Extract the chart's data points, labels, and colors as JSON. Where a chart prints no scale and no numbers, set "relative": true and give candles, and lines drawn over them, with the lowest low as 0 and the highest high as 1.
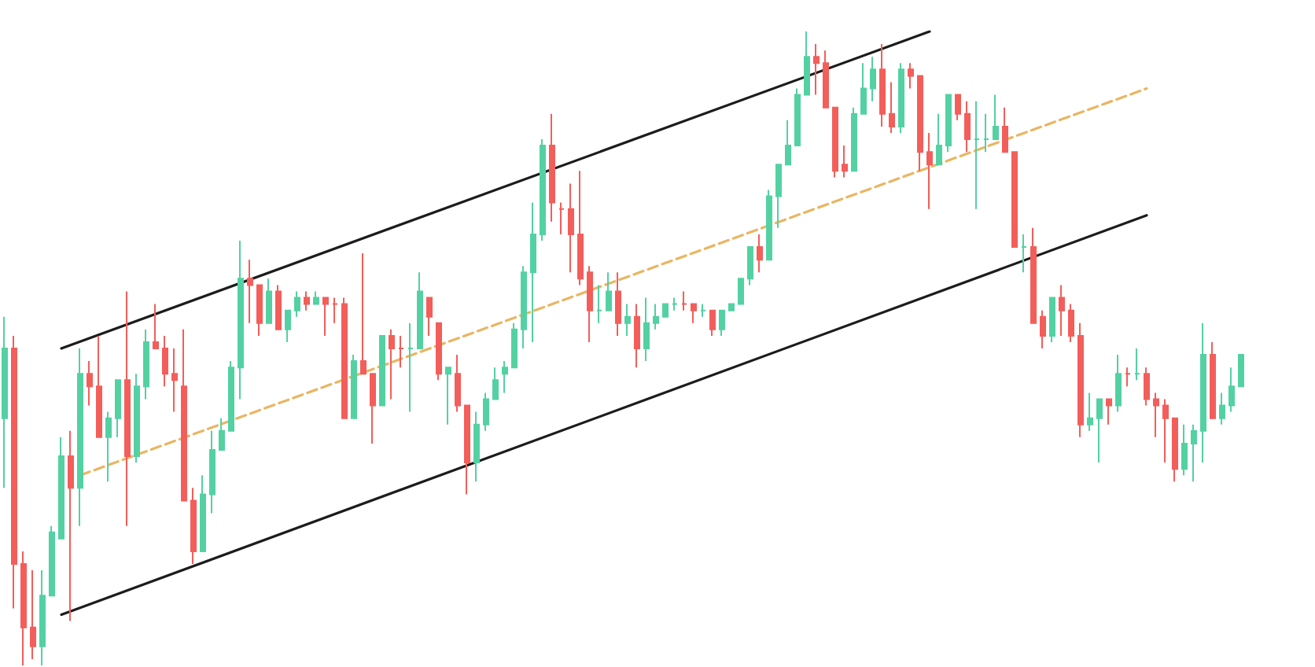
{
  "chart_data": {
    "type": "candlestick",
    "relative": true,
    "tick_labels": false,
    "grid": false,
    "colors": [
      "#53d1a3",
      "#f35e5a",
      "#f35e5a",
      "#f35e5a",
      "#53d1a3",
      "#53d1a3",
      "#53d1a3",
      "#f35e5a",
      "#53d1a3",
      "#f35e5a",
      "#f35e5a",
      "#53d1a3",
      "#53d1a3",
      "#f35e5a",
      "#53d1a3",
      "#53d1a3",
      "#f35e5a",
      "#f35e5a",
      "#f35e5a",
      "#f35e5a",
      "#f35e5a",
      "#53d1a3",
      "#53d1a3",
      "#53d1a3",
      "#53d1a3",
      "#53d1a3",
      "#f35e5a",
      "#f35e5a",
      "#53d1a3",
      "#f35e5a",
      "#53d1a3",
      "#53d1a3",
      "#f35e5a",
      "#53d1a3",
      "#f35e5a",
      "#f35e5a",
      "#f35e5a",
      "#53d1a3",
      "#f35e5a",
      "#f35e5a",
      "#53d1a3",
      "#f35e5a",
      "#f35e5a",
      "#53d1a3",
      "#53d1a3",
      "#f35e5a",
      "#f35e5a",
      "#53d1a3",
      "#f35e5a",
      "#f35e5a",
      "#53d1a3",
      "#53d1a3",
      "#53d1a3",
      "#53d1a3",
      "#53d1a3",
      "#53d1a3",
      "#53d1a3",
      "#53d1a3",
      "#f35e5a",
      "#f35e5a",
      "#f35e5a",
      "#f35e5a",
      "#f35e5a",
      "#53d1a3",
      "#53d1a3",
      "#f35e5a",
      "#53d1a3",
      "#f35e5a",
      "#53d1a3",
      "#53d1a3",
      "#53d1a3",
      "#53d1a3",
      "#f35e5a",
      "#f35e5a",
      "#53d1a3",
      "#f35e5a",
      "#53d1a3",
      "#53d1a3",
      "#53d1a3",
      "#53d1a3",
      "#f35e5a",
      "#53d1a3",
      "#53d1a3",
      "#53d1a3",
      "#53d1a3",
      "#53d1a3",
      "#f35e5a",
      "#f35e5a",
      "#f35e5a",
      "#f35e5a",
      "#53d1a3",
      "#53d1a3",
      "#53d1a3",
      "#f35e5a",
      "#f35e5a",
      "#53d1a3",
      "#f35e5a",
      "#f35e5a",
      "#f35e5a",
      "#53d1a3",
      "#53d1a3",
      "#f35e5a",
      "#f35e5a",
      "#53d1a3",
      "#53d1a3",
      "#53d1a3",
      "#f35e5a",
      "#f35e5a",
      "#53d1a3",
      "#f35e5a",
      "#f35e5a",
      "#53d1a3",
      "#f35e5a",
      "#f35e5a",
      "#f35e5a",
      "#53d1a3",
      "#53d1a3",
      "#f35e5a",
      "#53d1a3",
      "#f35e5a",
      "#53d1a3",
      "#f35e5a",
      "#f35e5a",
      "#f35e5a",
      "#f35e5a",
      "#53d1a3",
      "#53d1a3",
      "#53d1a3",
      "#f35e5a",
      "#53d1a3",
      "#53d1a3",
      "#53d1a3"
    ],
    "categories": [
      null,
      null,
      null,
      null,
      null,
      null,
      null,
      null,
      null,
      null,
      null,
      null,
      null,
      null,
      null,
      null,
      null,
      null,
      null,
      null,
      null,
      null,
      null,
      null,
      null,
      null,
      null,
      null,
      null,
      null,
      null,
      null,
      null,
      null,
      null,
      null,
      null,
      null,
      null,
      null,
      null,
      null,
      null,
      null,
      null,
      null,
      null,
      null,
      null,
      null,
      null,
      null,
      null,
      null,
      null,
      null,
      null,
      null,
      null,
      null,
      null,
      null,
      null,
      null,
      null,
      null,
      null,
      null,
      null,
      null,
      null,
      null,
      null,
      null,
      null,
      null,
      null,
      null,
      null,
      null,
      null,
      null,
      null,
      null,
      null,
      null,
      null,
      null,
      null,
      null,
      null,
      null,
      null,
      null,
      null,
      null,
      null,
      null,
      null,
      null,
      null,
      null,
      null,
      null,
      null,
      null,
      null,
      null,
      null,
      null,
      null,
      null,
      null,
      null,
      null,
      null,
      null,
      null,
      null,
      null,
      null,
      null,
      null,
      null,
      null,
      null,
      null,
      null,
      null,
      null,
      null,
      null
    ],
    "ohlc": [
      [
        0.39,
        0.55,
        0.28,
        0.5
      ],
      [
        0.5,
        0.52,
        0.09,
        0.16
      ],
      [
        0.16,
        0.18,
        0,
        0.06
      ],
      [
        0.06,
        0.15,
        0.01,
        0.03
      ],
      [
        0.03,
        0.15,
        0,
        0.11
      ],
      [
        0.11,
        0.22,
        0.11,
        0.21
      ],
      [
        0.2,
        0.36,
        0.2,
        0.33
      ],
      [
        0.33,
        0.37,
        0.07,
        0.28
      ],
      [
        0.28,
        0.5,
        0.22,
        0.46
      ],
      [
        0.46,
        0.48,
        0.41,
        0.44
      ],
      [
        0.44,
        0.52,
        0.36,
        0.36
      ],
      [
        0.36,
        0.4,
        0.29,
        0.39
      ],
      [
        0.39,
        0.45,
        0.36,
        0.45
      ],
      [
        0.45,
        0.59,
        0.22,
        0.33
      ],
      [
        0.33,
        0.46,
        0.32,
        0.44
      ],
      [
        0.44,
        0.53,
        0.42,
        0.51
      ],
      [
        0.51,
        0.57,
        0.5,
        0.5
      ],
      [
        0.5,
        0.52,
        0.44,
        0.46
      ],
      [
        0.46,
        0.5,
        0.4,
        0.45
      ],
      [
        0.44,
        0.53,
        0.26,
        0.26
      ],
      [
        0.26,
        0.28,
        0.16,
        0.18
      ],
      [
        0.18,
        0.3,
        0.18,
        0.27
      ],
      [
        0.27,
        0.37,
        0.24,
        0.34
      ],
      [
        0.34,
        0.39,
        0.34,
        0.37
      ],
      [
        0.37,
        0.48,
        0.37,
        0.47
      ],
      [
        0.47,
        0.67,
        0.42,
        0.61
      ],
      [
        0.61,
        0.64,
        0.54,
        0.6
      ],
      [
        0.6,
        0.6,
        0.52,
        0.54
      ],
      [
        0.54,
        0.61,
        0.54,
        0.59
      ],
      [
        0.59,
        0.6,
        0.53,
        0.53
      ],
      [
        0.53,
        0.56,
        0.51,
        0.56
      ],
      [
        0.56,
        0.59,
        0.55,
        0.58
      ],
      [
        0.58,
        0.59,
        0.56,
        0.57
      ],
      [
        0.57,
        0.59,
        0.57,
        0.58
      ],
      [
        0.58,
        0.58,
        0.52,
        0.57
      ],
      [
        0.57,
        0.58,
        0.54,
        0.57
      ],
      [
        0.57,
        0.58,
        0.39,
        0.39
      ],
      [
        0.39,
        0.49,
        0.39,
        0.48
      ],
      [
        0.48,
        0.65,
        0.46,
        0.46
      ],
      [
        0.46,
        0.46,
        0.35,
        0.41
      ],
      [
        0.41,
        0.52,
        0.41,
        0.52
      ],
      [
        0.52,
        0.53,
        0.42,
        0.5
      ],
      [
        0.5,
        0.52,
        0.47,
        0.5
      ],
      [
        0.5,
        0.54,
        0.4,
        0.5
      ],
      [
        0.5,
        0.62,
        0.5,
        0.59
      ],
      [
        0.58,
        0.58,
        0.52,
        0.55
      ],
      [
        0.54,
        0.54,
        0.45,
        0.46
      ],
      [
        0.46,
        0.47,
        0.38,
        0.47
      ],
      [
        0.46,
        0.49,
        0.4,
        0.41
      ],
      [
        0.41,
        0.41,
        0.27,
        0.32
      ],
      [
        0.32,
        0.4,
        0.29,
        0.38
      ],
      [
        0.38,
        0.43,
        0.37,
        0.42
      ],
      [
        0.42,
        0.47,
        0.42,
        0.45
      ],
      [
        0.46,
        0.48,
        0.43,
        0.47
      ],
      [
        0.47,
        0.54,
        0.47,
        0.53
      ],
      [
        0.53,
        0.63,
        0.5,
        0.62
      ],
      [
        0.62,
        0.73,
        0.51,
        0.68
      ],
      [
        0.68,
        0.83,
        0.67,
        0.82
      ],
      [
        0.82,
        0.87,
        0.7,
        0.73
      ],
      [
        0.72,
        0.73,
        0.68,
        0.72
      ],
      [
        0.72,
        0.76,
        0.62,
        0.68
      ],
      [
        0.68,
        0.78,
        0.6,
        0.61
      ],
      [
        0.62,
        0.63,
        0.51,
        0.56
      ],
      [
        0.56,
        0.6,
        0.54,
        0.56
      ],
      [
        0.56,
        0.62,
        0.56,
        0.59
      ],
      [
        0.59,
        0.62,
        0.52,
        0.54
      ],
      [
        0.54,
        0.57,
        0.52,
        0.55
      ],
      [
        0.55,
        0.57,
        0.47,
        0.5
      ],
      [
        0.5,
        0.58,
        0.48,
        0.54
      ],
      [
        0.54,
        0.57,
        0.53,
        0.55
      ],
      [
        0.55,
        0.57,
        0.55,
        0.57
      ],
      [
        0.57,
        0.58,
        0.56,
        0.57
      ],
      [
        0.57,
        0.59,
        0.56,
        0.57
      ],
      [
        0.57,
        0.57,
        0.54,
        0.56
      ],
      [
        0.56,
        0.57,
        0.55,
        0.56
      ],
      [
        0.56,
        0.56,
        0.52,
        0.53
      ],
      [
        0.53,
        0.56,
        0.52,
        0.56
      ],
      [
        0.56,
        0.57,
        0.56,
        0.57
      ],
      [
        0.57,
        0.61,
        0.57,
        0.61
      ],
      [
        0.61,
        0.66,
        0.6,
        0.66
      ],
      [
        0.66,
        0.68,
        0.62,
        0.64
      ],
      [
        0.64,
        0.75,
        0.64,
        0.74
      ],
      [
        0.74,
        0.79,
        0.69,
        0.79
      ],
      [
        0.79,
        0.86,
        0.79,
        0.82
      ],
      [
        0.82,
        0.91,
        0.82,
        0.9
      ],
      [
        0.9,
        1,
        0.9,
        0.96
      ],
      [
        0.96,
        0.98,
        0.9,
        0.95
      ],
      [
        0.95,
        0.97,
        0.88,
        0.88
      ],
      [
        0.88,
        0.88,
        0.77,
        0.78
      ],
      [
        0.79,
        0.82,
        0.77,
        0.78
      ],
      [
        0.78,
        0.88,
        0.78,
        0.87
      ],
      [
        0.87,
        0.95,
        0.87,
        0.91
      ],
      [
        0.91,
        0.96,
        0.89,
        0.94
      ],
      [
        0.94,
        0.98,
        0.85,
        0.87
      ],
      [
        0.87,
        0.92,
        0.84,
        0.85
      ],
      [
        0.85,
        0.95,
        0.84,
        0.94
      ],
      [
        0.94,
        0.95,
        0.91,
        0.93
      ],
      [
        0.93,
        0.93,
        0.78,
        0.81
      ],
      [
        0.81,
        0.84,
        0.72,
        0.79
      ],
      [
        0.79,
        0.87,
        0.79,
        0.82
      ],
      [
        0.82,
        0.9,
        0.81,
        0.9
      ],
      [
        0.9,
        0.9,
        0.86,
        0.87
      ],
      [
        0.87,
        0.89,
        0.81,
        0.83
      ],
      [
        0.83,
        0.89,
        0.72,
        0.83
      ],
      [
        0.83,
        0.87,
        0.81,
        0.83
      ],
      [
        0.83,
        0.9,
        0.83,
        0.85
      ],
      [
        0.85,
        0.88,
        0.81,
        0.81
      ],
      [
        0.81,
        0.81,
        0.66,
        0.66
      ],
      [
        0.66,
        0.68,
        0.62,
        0.66
      ],
      [
        0.66,
        0.69,
        0.54,
        0.54
      ],
      [
        0.55,
        0.56,
        0.5,
        0.52
      ],
      [
        0.52,
        0.58,
        0.51,
        0.58
      ],
      [
        0.58,
        0.6,
        0.52,
        0.56
      ],
      [
        0.56,
        0.57,
        0.51,
        0.52
      ],
      [
        0.52,
        0.54,
        0.36,
        0.38
      ],
      [
        0.38,
        0.43,
        0.37,
        0.39
      ],
      [
        0.39,
        0.42,
        0.32,
        0.42
      ],
      [
        0.42,
        0.42,
        0.38,
        0.41
      ],
      [
        0.41,
        0.49,
        0.4,
        0.46
      ],
      [
        0.46,
        0.47,
        0.44,
        0.46
      ],
      [
        0.46,
        0.5,
        0.45,
        0.46
      ],
      [
        0.46,
        0.47,
        0.41,
        0.42
      ],
      [
        0.42,
        0.43,
        0.36,
        0.41
      ],
      [
        0.41,
        0.42,
        0.32,
        0.39
      ],
      [
        0.39,
        0.39,
        0.29,
        0.31
      ],
      [
        0.31,
        0.38,
        0.3,
        0.35
      ],
      [
        0.35,
        0.38,
        0.29,
        0.37
      ],
      [
        0.37,
        0.54,
        0.32,
        0.49
      ],
      [
        0.49,
        0.51,
        0.39,
        0.39
      ],
      [
        0.39,
        0.43,
        0.38,
        0.41
      ],
      [
        0.41,
        0.47,
        0.4,
        0.44
      ],
      [
        0.44,
        0.49,
        0.44,
        0.49
      ]
    ],
    "series": [
      {
        "type": "line",
        "color": "#1c1c1c",
        "values": [
          null,
          null,
          null,
          null,
          null,
          null,
          0.5,
          null,
          null,
          null,
          null,
          null,
          null,
          null,
          null,
          null,
          null,
          null,
          null,
          null,
          null,
          null,
          null,
          null,
          null,
          null,
          null,
          null,
          null,
          null,
          null,
          null,
          null,
          null,
          null,
          null,
          null,
          null,
          null,
          null,
          null,
          null,
          null,
          null,
          null,
          null,
          null,
          null,
          null,
          null,
          null,
          null,
          null,
          null,
          null,
          null,
          null,
          null,
          null,
          null,
          null,
          null,
          null,
          null,
          null,
          null,
          null,
          null,
          null,
          null,
          null,
          null,
          null,
          null,
          null,
          null,
          null,
          null,
          null,
          null,
          null,
          null,
          null,
          null,
          null,
          null,
          null,
          null,
          null,
          null,
          null,
          null,
          null,
          null,
          null,
          null,
          null,
          null,
          1,
          null,
          null,
          null,
          null,
          null,
          null,
          null,
          null,
          null,
          null,
          null,
          null,
          null,
          null,
          null,
          null,
          null,
          null,
          null,
          null,
          null,
          null,
          null,
          null,
          null,
          null,
          null,
          null,
          null,
          null,
          null,
          null,
          null
        ]
      },
      {
        "type": "line",
        "color": "#1c1c1c",
        "values": [
          null,
          null,
          null,
          null,
          null,
          null,
          0.08,
          null,
          null,
          null,
          null,
          null,
          null,
          null,
          null,
          null,
          null,
          null,
          null,
          null,
          null,
          null,
          null,
          null,
          null,
          null,
          null,
          null,
          null,
          null,
          null,
          null,
          null,
          null,
          null,
          null,
          null,
          null,
          null,
          null,
          null,
          null,
          null,
          null,
          null,
          null,
          null,
          null,
          null,
          null,
          null,
          null,
          null,
          null,
          null,
          null,
          null,
          null,
          null,
          null,
          null,
          null,
          null,
          null,
          null,
          null,
          null,
          null,
          null,
          null,
          null,
          null,
          null,
          null,
          null,
          null,
          null,
          null,
          null,
          null,
          null,
          null,
          null,
          null,
          null,
          null,
          null,
          null,
          null,
          null,
          null,
          null,
          null,
          null,
          null,
          null,
          null,
          null,
          null,
          null,
          null,
          null,
          null,
          null,
          null,
          null,
          null,
          null,
          null,
          null,
          null,
          null,
          null,
          null,
          null,
          null,
          null,
          null,
          null,
          null,
          null,
          0.71,
          null,
          null,
          null,
          null,
          null,
          null,
          null,
          null,
          null,
          null
        ]
      },
      {
        "type": "line",
        "color": "#e9b662",
        "line_style": "dashed",
        "values": [
          null,
          null,
          null,
          null,
          null,
          null,
          null,
          null,
          0.3,
          null,
          null,
          null,
          null,
          null,
          null,
          null,
          null,
          null,
          null,
          null,
          null,
          null,
          null,
          null,
          null,
          null,
          null,
          null,
          null,
          null,
          null,
          null,
          null,
          null,
          null,
          null,
          null,
          null,
          null,
          null,
          null,
          null,
          null,
          null,
          null,
          null,
          null,
          null,
          null,
          null,
          null,
          null,
          null,
          null,
          null,
          null,
          null,
          null,
          null,
          null,
          null,
          null,
          null,
          null,
          null,
          null,
          null,
          null,
          null,
          null,
          null,
          null,
          null,
          null,
          null,
          null,
          null,
          null,
          null,
          null,
          null,
          null,
          null,
          null,
          null,
          null,
          null,
          null,
          null,
          null,
          null,
          null,
          null,
          null,
          null,
          null,
          null,
          null,
          null,
          null,
          null,
          null,
          null,
          null,
          null,
          null,
          null,
          null,
          null,
          null,
          null,
          null,
          null,
          null,
          null,
          null,
          null,
          null,
          null,
          null,
          null,
          0.91,
          null,
          null,
          null,
          null,
          null,
          null,
          null,
          null,
          null,
          null
        ]
      }
    ]
  }
}
